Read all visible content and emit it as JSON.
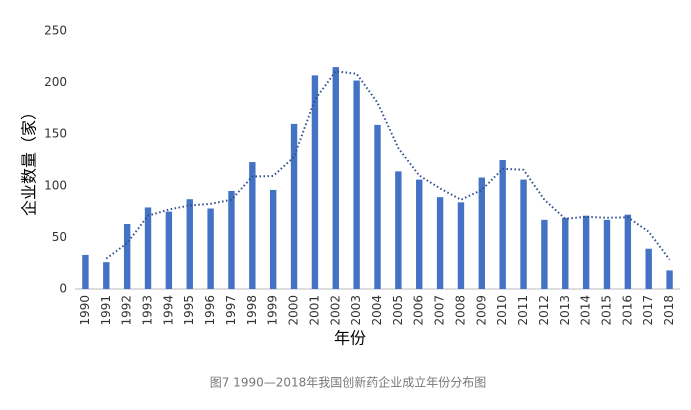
{
  "chart_data": {
    "type": "bar",
    "categories": [
      "1990",
      "1991",
      "1992",
      "1993",
      "1994",
      "1995",
      "1996",
      "1997",
      "1998",
      "1999",
      "2000",
      "2001",
      "2002",
      "2003",
      "2004",
      "2005",
      "2006",
      "2007",
      "2008",
      "2009",
      "2010",
      "2011",
      "2012",
      "2013",
      "2014",
      "2015",
      "2016",
      "2017",
      "2018"
    ],
    "values": [
      33,
      26,
      63,
      79,
      75,
      87,
      78,
      95,
      123,
      96,
      160,
      207,
      215,
      202,
      159,
      114,
      106,
      89,
      84,
      108,
      125,
      106,
      67,
      69,
      71,
      67,
      72,
      39,
      18
    ],
    "color": "#4472c4",
    "trend": {
      "style": "dotted",
      "color": "#2f4f8f",
      "values": [
        null,
        29.5,
        44.5,
        71,
        77,
        81,
        82.5,
        86.5,
        109,
        109.5,
        128,
        183.5,
        211,
        208.5,
        180.5,
        136.5,
        110,
        97.5,
        86.5,
        96,
        116.5,
        115.5,
        86.5,
        68,
        70,
        69,
        69.5,
        55.5,
        28.5
      ]
    },
    "ylim": [
      0,
      250
    ],
    "yticks": [
      0,
      50,
      100,
      150,
      200,
      250
    ],
    "grid": false,
    "y_label": "企业数量（家）",
    "x_label": "年份",
    "caption": "图7  1990—2018年我国创新药企业成立年份分布图"
  }
}
